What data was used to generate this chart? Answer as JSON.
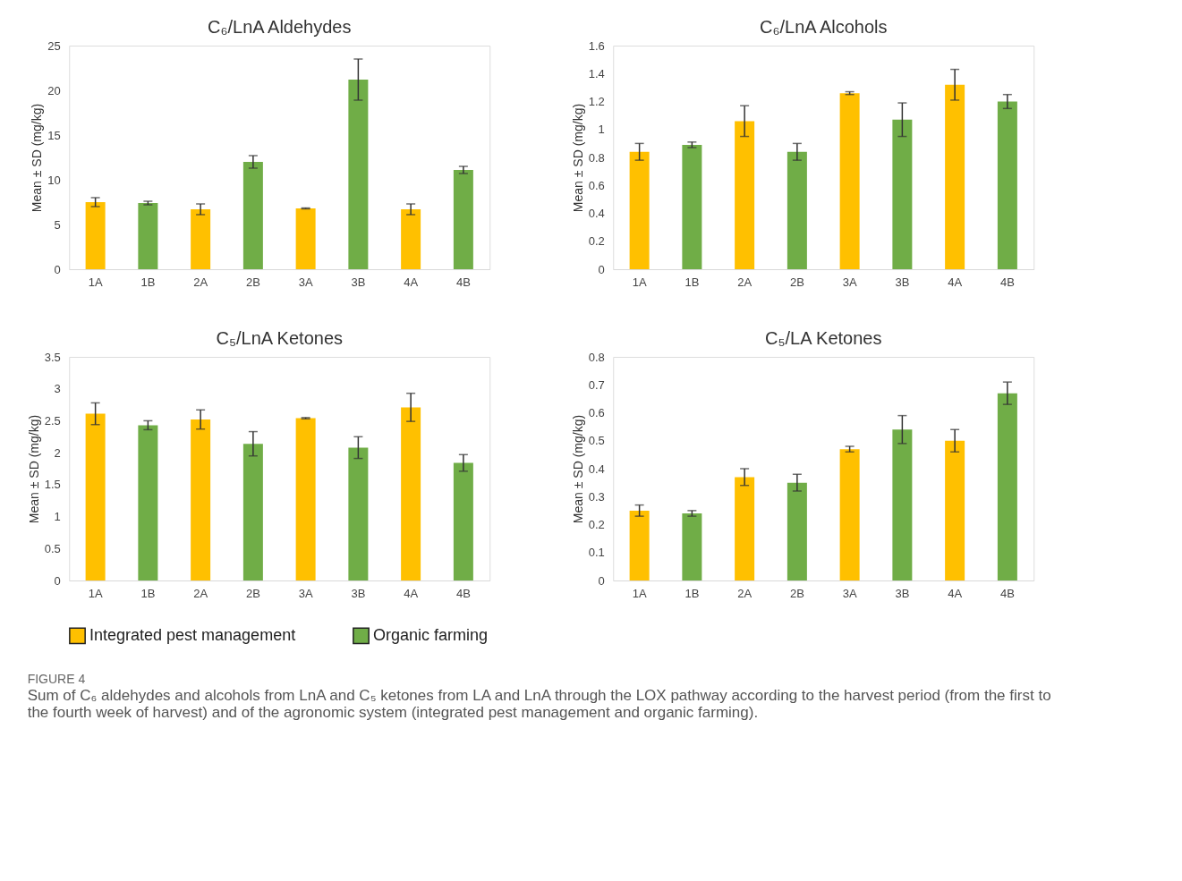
{
  "chart_data": [
    {
      "type": "bar",
      "title": "C₆/LnA Aldehydes",
      "ylabel": "Mean ± SD (mg/kg)",
      "categories": [
        "1A",
        "1B",
        "2A",
        "2B",
        "3A",
        "3B",
        "4A",
        "4B"
      ],
      "series": [
        {
          "name": "Integrated pest management",
          "color": "#ffc000",
          "values": [
            7.5,
            null,
            6.7,
            null,
            6.8,
            null,
            6.7,
            null
          ],
          "errors": [
            0.5,
            null,
            0.6,
            null,
            0.05,
            null,
            0.6,
            null
          ]
        },
        {
          "name": "Organic farming",
          "color": "#70ad47",
          "values": [
            null,
            7.4,
            null,
            12.0,
            null,
            21.2,
            null,
            11.1
          ],
          "errors": [
            null,
            0.2,
            null,
            0.7,
            null,
            2.3,
            null,
            0.4
          ]
        }
      ],
      "ylim": [
        0,
        25
      ],
      "yticks": [
        0,
        5,
        10,
        15,
        20,
        25
      ],
      "grid": false,
      "legend": "bottom"
    },
    {
      "type": "bar",
      "title": "C₆/LnA Alcohols",
      "ylabel": "Mean ± SD (mg/kg)",
      "categories": [
        "1A",
        "1B",
        "2A",
        "2B",
        "3A",
        "3B",
        "4A",
        "4B"
      ],
      "series": [
        {
          "name": "Integrated pest management",
          "color": "#ffc000",
          "values": [
            0.84,
            null,
            1.06,
            null,
            1.26,
            null,
            1.32,
            null
          ],
          "errors": [
            0.06,
            null,
            0.11,
            null,
            0.01,
            null,
            0.11,
            null
          ]
        },
        {
          "name": "Organic farming",
          "color": "#70ad47",
          "values": [
            null,
            0.89,
            null,
            0.84,
            null,
            1.07,
            null,
            1.2
          ],
          "errors": [
            null,
            0.02,
            null,
            0.06,
            null,
            0.12,
            null,
            0.05
          ]
        }
      ],
      "ylim": [
        0,
        1.6
      ],
      "yticks": [
        0,
        0.2,
        0.4,
        0.6,
        0.8,
        1,
        1.2,
        1.4,
        1.6
      ],
      "grid": false,
      "legend": "bottom"
    },
    {
      "type": "bar",
      "title": "C₅/LnA Ketones",
      "ylabel": "Mean ± SD (mg/kg)",
      "categories": [
        "1A",
        "1B",
        "2A",
        "2B",
        "3A",
        "3B",
        "4A",
        "4B"
      ],
      "series": [
        {
          "name": "Integrated pest management",
          "color": "#ffc000",
          "values": [
            2.61,
            null,
            2.52,
            null,
            2.54,
            null,
            2.71,
            null
          ],
          "errors": [
            0.17,
            null,
            0.15,
            null,
            0.01,
            null,
            0.22,
            null
          ]
        },
        {
          "name": "Organic farming",
          "color": "#70ad47",
          "values": [
            null,
            2.43,
            null,
            2.14,
            null,
            2.08,
            null,
            1.84
          ],
          "errors": [
            null,
            0.07,
            null,
            0.19,
            null,
            0.17,
            null,
            0.13
          ]
        }
      ],
      "ylim": [
        0,
        3.5
      ],
      "yticks": [
        0,
        0.5,
        1,
        1.5,
        2,
        2.5,
        3,
        3.5
      ],
      "grid": false,
      "legend": "bottom"
    },
    {
      "type": "bar",
      "title": "C₅/LA Ketones",
      "ylabel": "Mean ± SD (mg/kg)",
      "categories": [
        "1A",
        "1B",
        "2A",
        "2B",
        "3A",
        "3B",
        "4A",
        "4B"
      ],
      "series": [
        {
          "name": "Integrated pest management",
          "color": "#ffc000",
          "values": [
            0.25,
            null,
            0.37,
            null,
            0.47,
            null,
            0.5,
            null
          ],
          "errors": [
            0.02,
            null,
            0.03,
            null,
            0.01,
            null,
            0.04,
            null
          ]
        },
        {
          "name": "Organic farming",
          "color": "#70ad47",
          "values": [
            null,
            0.24,
            null,
            0.35,
            null,
            0.54,
            null,
            0.67
          ],
          "errors": [
            null,
            0.01,
            null,
            0.03,
            null,
            0.05,
            null,
            0.04
          ]
        }
      ],
      "ylim": [
        0,
        0.8
      ],
      "yticks": [
        0,
        0.1,
        0.2,
        0.3,
        0.4,
        0.5,
        0.6,
        0.7,
        0.8
      ],
      "grid": false,
      "legend": "bottom",
      "annotations": [
        "FIGURE 4",
        "Sum of C₆ aldehydes and alcohols from LnA and C₅ ketones from LA and LnA through the LOX pathway according to the harvest period (from the first to the fourth week of harvest) and of the agronomic system (integrated pest management and organic farming)."
      ]
    }
  ]
}
